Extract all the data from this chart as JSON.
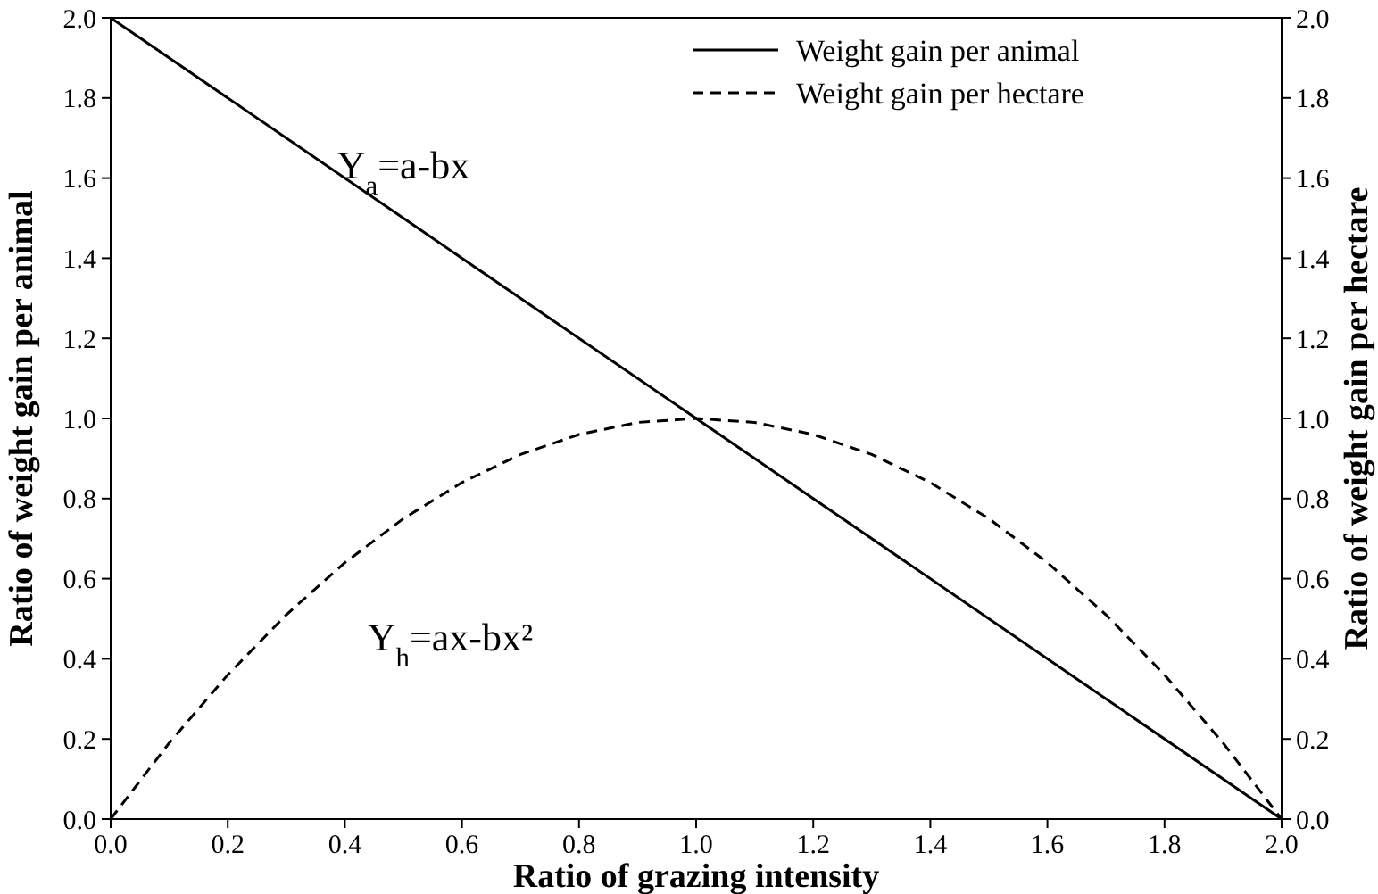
{
  "chart_data": {
    "type": "line",
    "xlabel": "Ratio of grazing intensity",
    "ylabel": "Ratio of weight gain per animal",
    "y2label": "Ratio of weight gain per hectare",
    "series": [
      {
        "name": "Weight gain per animal",
        "color": "#000000",
        "line_style": "solid",
        "x": [
          0,
          2
        ],
        "values": [
          2,
          0
        ]
      },
      {
        "name": "Weight gain per hectare",
        "color": "#000000",
        "line_style": "dashed",
        "x": [
          0,
          0.1,
          0.2,
          0.3,
          0.4,
          0.5,
          0.6,
          0.7,
          0.8,
          0.9,
          1.0,
          1.1,
          1.2,
          1.3,
          1.4,
          1.5,
          1.6,
          1.7,
          1.8,
          1.9,
          2.0
        ],
        "values": [
          0,
          0.19,
          0.36,
          0.51,
          0.64,
          0.75,
          0.84,
          0.91,
          0.96,
          0.99,
          1.0,
          0.99,
          0.96,
          0.91,
          0.84,
          0.75,
          0.64,
          0.51,
          0.36,
          0.19,
          0
        ]
      }
    ],
    "xlim": [
      0,
      2
    ],
    "ylim": [
      0,
      2
    ],
    "y2lim": [
      0,
      2
    ],
    "xticks": [
      {
        "value": 0,
        "label": "0.0"
      },
      {
        "value": 0.2,
        "label": "0.2"
      },
      {
        "value": 0.4,
        "label": "0.4"
      },
      {
        "value": 0.6,
        "label": "0.6"
      },
      {
        "value": 0.8,
        "label": "0.8"
      },
      {
        "value": 1,
        "label": "1.0"
      },
      {
        "value": 1.2,
        "label": "1.2"
      },
      {
        "value": 1.4,
        "label": "1.4"
      },
      {
        "value": 1.6,
        "label": "1.6"
      },
      {
        "value": 1.8,
        "label": "1.8"
      },
      {
        "value": 2,
        "label": "2.0"
      }
    ],
    "yticks": [
      {
        "value": 0,
        "label": "0.0"
      },
      {
        "value": 0.2,
        "label": "0.2"
      },
      {
        "value": 0.4,
        "label": "0.4"
      },
      {
        "value": 0.6,
        "label": "0.6"
      },
      {
        "value": 0.8,
        "label": "0.8"
      },
      {
        "value": 1,
        "label": "1.0"
      },
      {
        "value": 1.2,
        "label": "1.2"
      },
      {
        "value": 1.4,
        "label": "1.4"
      },
      {
        "value": 1.6,
        "label": "1.6"
      },
      {
        "value": 1.8,
        "label": "1.8"
      },
      {
        "value": 2,
        "label": "2.0"
      }
    ],
    "y2ticks": [
      {
        "value": 0,
        "label": "0.0"
      },
      {
        "value": 0.2,
        "label": "0.2"
      },
      {
        "value": 0.4,
        "label": "0.4"
      },
      {
        "value": 0.6,
        "label": "0.6"
      },
      {
        "value": 0.8,
        "label": "0.8"
      },
      {
        "value": 1,
        "label": "1.0"
      },
      {
        "value": 1.2,
        "label": "1.2"
      },
      {
        "value": 1.4,
        "label": "1.4"
      },
      {
        "value": 1.6,
        "label": "1.6"
      },
      {
        "value": 1.8,
        "label": "1.8"
      },
      {
        "value": 2,
        "label": "2.0"
      }
    ],
    "annotations": [
      "Y$_{a}$=a-bx",
      "Y$_{h}$=ax-bx²"
    ],
    "legend": "top right",
    "grid": false,
    "marker": "none"
  }
}
